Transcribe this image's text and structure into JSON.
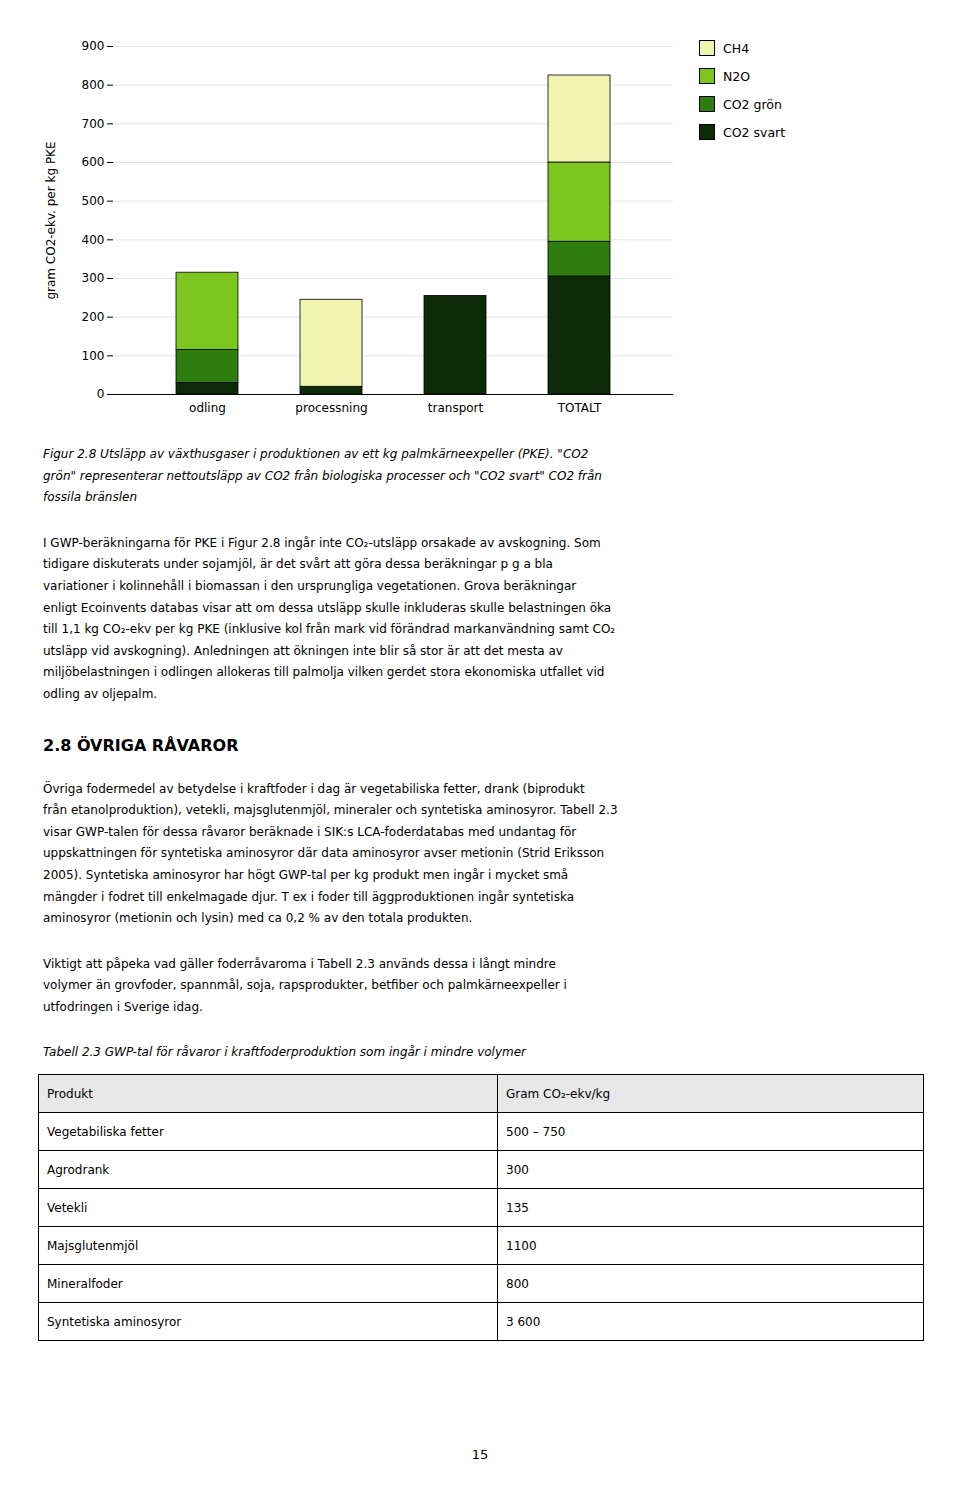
{
  "chart_data": {
    "type": "bar",
    "stacked": true,
    "categories": [
      "odling",
      "processning",
      "transport",
      "TOTALT"
    ],
    "series": [
      {
        "name": "CO2 svart",
        "color": "#0d2b06",
        "values": [
          30,
          20,
          255,
          305
        ]
      },
      {
        "name": "CO2 grön",
        "color": "#2e7d0e",
        "values": [
          85,
          0,
          0,
          90
        ]
      },
      {
        "name": "N2O",
        "color": "#7dc620",
        "values": [
          200,
          0,
          0,
          205
        ]
      },
      {
        "name": "CH4",
        "color": "#f0f5b0",
        "values": [
          0,
          225,
          0,
          225
        ]
      }
    ],
    "ylabel": "gram CO2-ekv. per kg PKE",
    "ylim": [
      0,
      900
    ],
    "yticks": [
      0,
      100,
      200,
      300,
      400,
      500,
      600,
      700,
      800,
      900
    ],
    "grid": true,
    "legend": "upper right"
  },
  "page": {
    "caption_lines": [
      "Figur 2.8  Utsläpp av växthusgaser i produktionen av ett kg palmkärneexpeller (PKE).  \"CO2",
      "grön\" representerar nettoutsläpp av CO2 från biologiska processer och \"CO2 svart\" CO2 från",
      "fossila bränslen"
    ],
    "paragraphs_before_heading": [
      [
        "I GWP-beräkningarna för PKE i Figur 2.8 ingår inte CO₂-utsläpp orsakade av avskogning. Som",
        "tidigare diskuterats under sojamjöl, är det svårt att göra dessa beräkningar p g a bla",
        "variationer i kolinnehåll i biomassan i den ursprungliga vegetationen.  Grova beräkningar",
        "enligt Ecoinvents databas visar att om dessa utsläpp skulle inkluderas skulle belastningen öka",
        "till 1,1 kg CO₂-ekv per kg PKE (inklusive kol från mark vid förändrad markanvändning samt CO₂",
        "utsläpp vid avskogning).  Anledningen att ökningen inte blir så stor är att det mesta av",
        "miljöbelastningen i odlingen allokeras till palmolja vilken gerdet stora ekonomiska utfallet vid",
        "odling av oljepalm."
      ]
    ],
    "heading": "2.8 ÖVRIGA RÅVAROR",
    "paragraphs_after_heading": [
      [
        "Övriga fodermedel av betydelse i kraftfoder i dag är vegetabiliska fetter, drank (biprodukt",
        "från etanolproduktion), vetekli, majsglutenmjöl, mineraler och syntetiska aminosyror. Tabell 2.3",
        "visar GWP-talen för dessa råvaror beräknade i SIK:s LCA-foderdatabas med undantag för",
        "uppskattningen för syntetiska aminosyror där data aminosyror avser metionin (Strid Eriksson",
        "2005).  Syntetiska aminosyror har högt GWP-tal per kg produkt men ingår i mycket små",
        "mängder i fodret till enkelmagade djur.  T ex i foder till äggproduktionen ingår syntetiska",
        "aminosyror (metionin och lysin) med ca 0,2 % av den totala produkten."
      ],
      [
        "Viktigt att påpeka vad gäller foderråvaroma i Tabell 2.3   används dessa i långt mindre",
        "volymer än grovfoder, spannmål, soja, rapsprodukter, betfiber och palmkärneexpeller i",
        "utfodringen i Sverige idag."
      ]
    ],
    "table_heading": "Tabell 2.3  GWP-tal för råvaror i kraftfoderproduktion som ingår i mindre volymer",
    "table": [
      [
        "Produkt",
        "Gram CO₂-ekv/kg"
      ],
      [
        "Vegetabiliska fetter",
        "500 – 750"
      ],
      [
        "Agrodrank",
        "300"
      ],
      [
        "Vetekli",
        "135"
      ],
      [
        "Majsglutenmjöl",
        "1100"
      ],
      [
        "Mineralfoder",
        "800"
      ],
      [
        "Syntetiska aminosyror",
        "3 600"
      ]
    ],
    "page_number": "15"
  }
}
